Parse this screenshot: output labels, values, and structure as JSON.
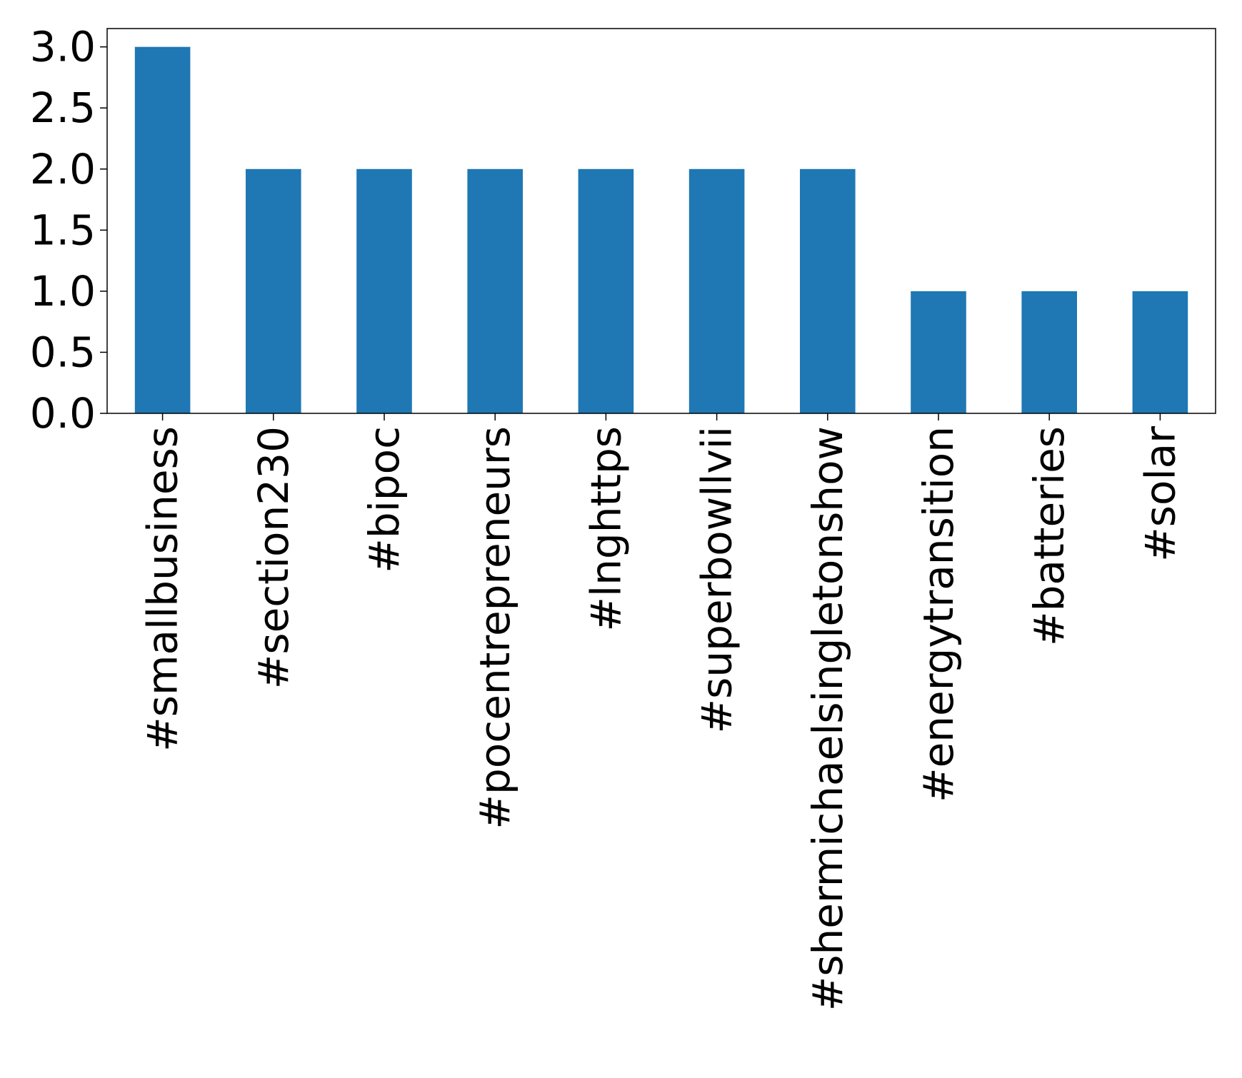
{
  "chart_data": {
    "type": "bar",
    "title": "",
    "xlabel": "",
    "ylabel": "",
    "categories": [
      "#smallbusiness",
      "#section230",
      "#bipoc",
      "#pocentrepreneurs",
      "#lnghttps",
      "#superbowllvii",
      "#shermichaelsingletonshow",
      "#energytransition",
      "#batteries",
      "#solar"
    ],
    "values": [
      3,
      2,
      2,
      2,
      2,
      2,
      2,
      1,
      1,
      1
    ],
    "ylim": [
      0,
      3.15
    ],
    "yticks": [
      0.0,
      0.5,
      1.0,
      1.5,
      2.0,
      2.5,
      3.0
    ],
    "ytick_labels": [
      "0.0",
      "0.5",
      "1.0",
      "1.5",
      "2.0",
      "2.5",
      "3.0"
    ],
    "bar_color": "#1f77b4",
    "grid": false,
    "legend": "none"
  }
}
